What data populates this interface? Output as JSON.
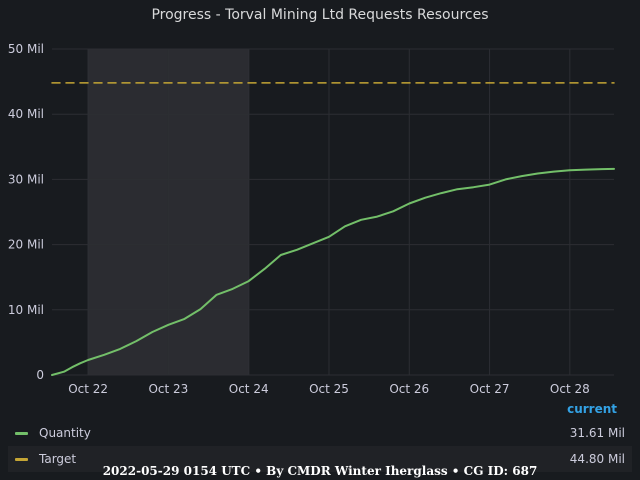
{
  "title": "Progress - Torval Mining Ltd Requests Resources",
  "chart_data": {
    "type": "line",
    "title": "Progress - Torval Mining Ltd Requests Resources",
    "x_tick_labels": [
      "Oct 22",
      "Oct 23",
      "Oct 24",
      "Oct 25",
      "Oct 26",
      "Oct 27",
      "Oct 28"
    ],
    "y_tick_labels": [
      "0",
      "10 Mil",
      "20 Mil",
      "30 Mil",
      "40 Mil",
      "50 Mil"
    ],
    "ylim": [
      0,
      50
    ],
    "xlim": [
      -0.45,
      6.55
    ],
    "grid": true,
    "highlight_region": [
      0,
      2
    ],
    "series": [
      {
        "name": "Quantity",
        "color": "#73bf69",
        "dash": "solid",
        "x": [
          -0.45,
          -0.3,
          -0.2,
          -0.1,
          0,
          0.2,
          0.4,
          0.6,
          0.8,
          1,
          1.2,
          1.4,
          1.6,
          1.8,
          2,
          2.2,
          2.4,
          2.6,
          2.8,
          3,
          3.2,
          3.4,
          3.6,
          3.8,
          4,
          4.2,
          4.4,
          4.6,
          4.8,
          5,
          5.2,
          5.4,
          5.6,
          5.8,
          6,
          6.2,
          6.4,
          6.55
        ],
        "values": [
          0,
          0.5,
          1.2,
          1.8,
          2.3,
          3.1,
          4.0,
          5.2,
          6.6,
          7.7,
          8.6,
          10.1,
          12.3,
          13.2,
          14.4,
          16.3,
          18.4,
          19.2,
          20.2,
          21.2,
          22.8,
          23.8,
          24.3,
          25.1,
          26.3,
          27.2,
          27.9,
          28.5,
          28.8,
          29.2,
          30.0,
          30.5,
          30.9,
          31.2,
          31.4,
          31.5,
          31.58,
          31.61
        ]
      },
      {
        "name": "Target",
        "color": "#c4a535",
        "dash": "dashed",
        "x": [
          -0.45,
          6.55
        ],
        "values": [
          44.8,
          44.8
        ]
      }
    ],
    "legend_position": "bottom"
  },
  "legend": {
    "header": "current",
    "items": [
      {
        "name": "Quantity",
        "value": "31.61 Mil",
        "color": "#73bf69"
      },
      {
        "name": "Target",
        "value": "44.80 Mil",
        "color": "#c4a535"
      }
    ]
  },
  "footer": "2022-05-29 0154 UTC • By CMDR Winter Iherglass • CG ID: 687"
}
